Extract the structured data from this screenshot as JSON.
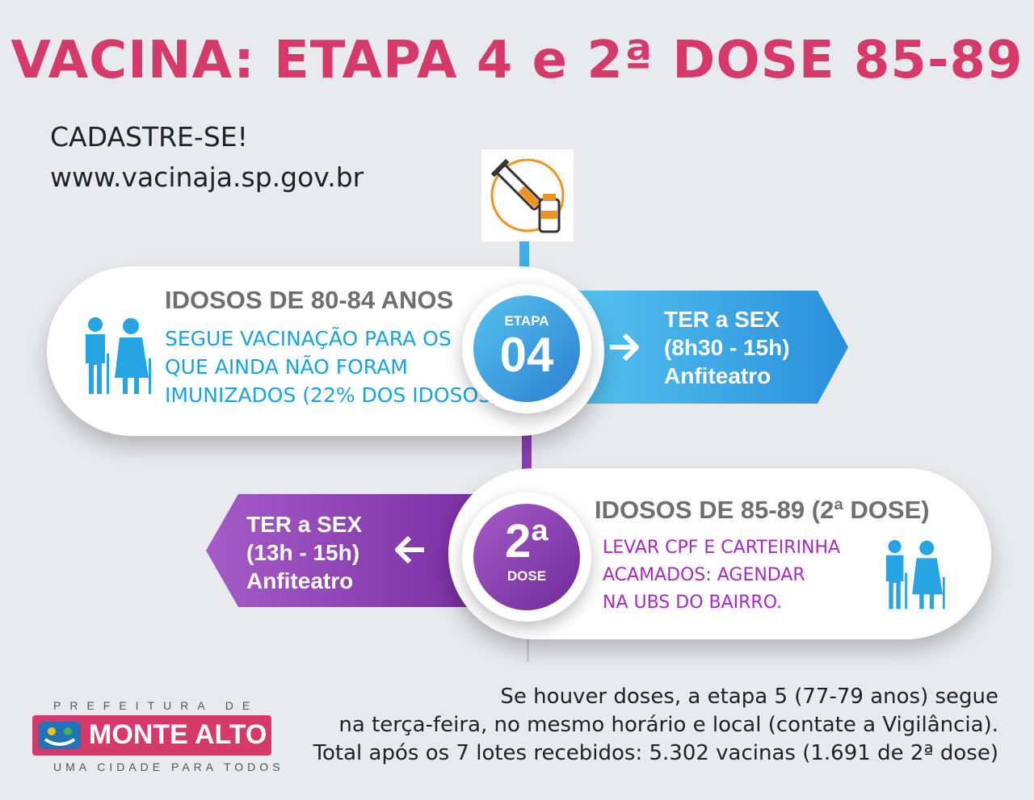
{
  "header": {
    "title": "VACINA: ETAPA 4 e 2ª DOSE 85-89"
  },
  "register": {
    "cta": "CADASTRE-SE!",
    "url": "www.vacinaja.sp.gov.br"
  },
  "etapa4": {
    "badge_label": "ETAPA",
    "badge_number": "04",
    "heading": "IDOSOS DE 80-84 ANOS",
    "lines": [
      "SEGUE VACINAÇÃO PARA OS",
      "QUE AINDA NÃO FORAM",
      "IMUNIZADOS (22% DOS IDOSOS)"
    ],
    "schedule": [
      "TER a SEX",
      "(8h30 - 15h)",
      "Anfiteatro"
    ]
  },
  "dose2": {
    "badge_number": "2ª",
    "badge_label": "DOSE",
    "heading": "IDOSOS DE 85-89 (2ª DOSE)",
    "lines": [
      "LEVAR CPF  E CARTEIRINHA",
      "ACAMADOS: AGENDAR",
      "NA UBS DO BAIRRO."
    ],
    "schedule": [
      "TER a SEX",
      "(13h - 15h)",
      "Anfiteatro"
    ]
  },
  "logo": {
    "top": "PREFEITURA DE",
    "name": "MONTE ALTO",
    "tagline": "UMA CIDADE PARA TODOS"
  },
  "footer": {
    "lines": [
      "Se houver doses, a etapa 5 (77-79 anos) segue",
      "na terça-feira, no mesmo horário e local (contate a Vigilância).",
      "Total após os 7 lotes recebidos: 5.302 vacinas (1.691 de 2ª dose)"
    ]
  },
  "colors": {
    "title": "#d63a6b",
    "blue": "#2c9be0",
    "purple": "#8e3fb0",
    "orange": "#f29220"
  },
  "icons": [
    "syringe-vaccine-icon",
    "elderly-couple-icon",
    "arrow-right-icon",
    "arrow-left-icon"
  ]
}
